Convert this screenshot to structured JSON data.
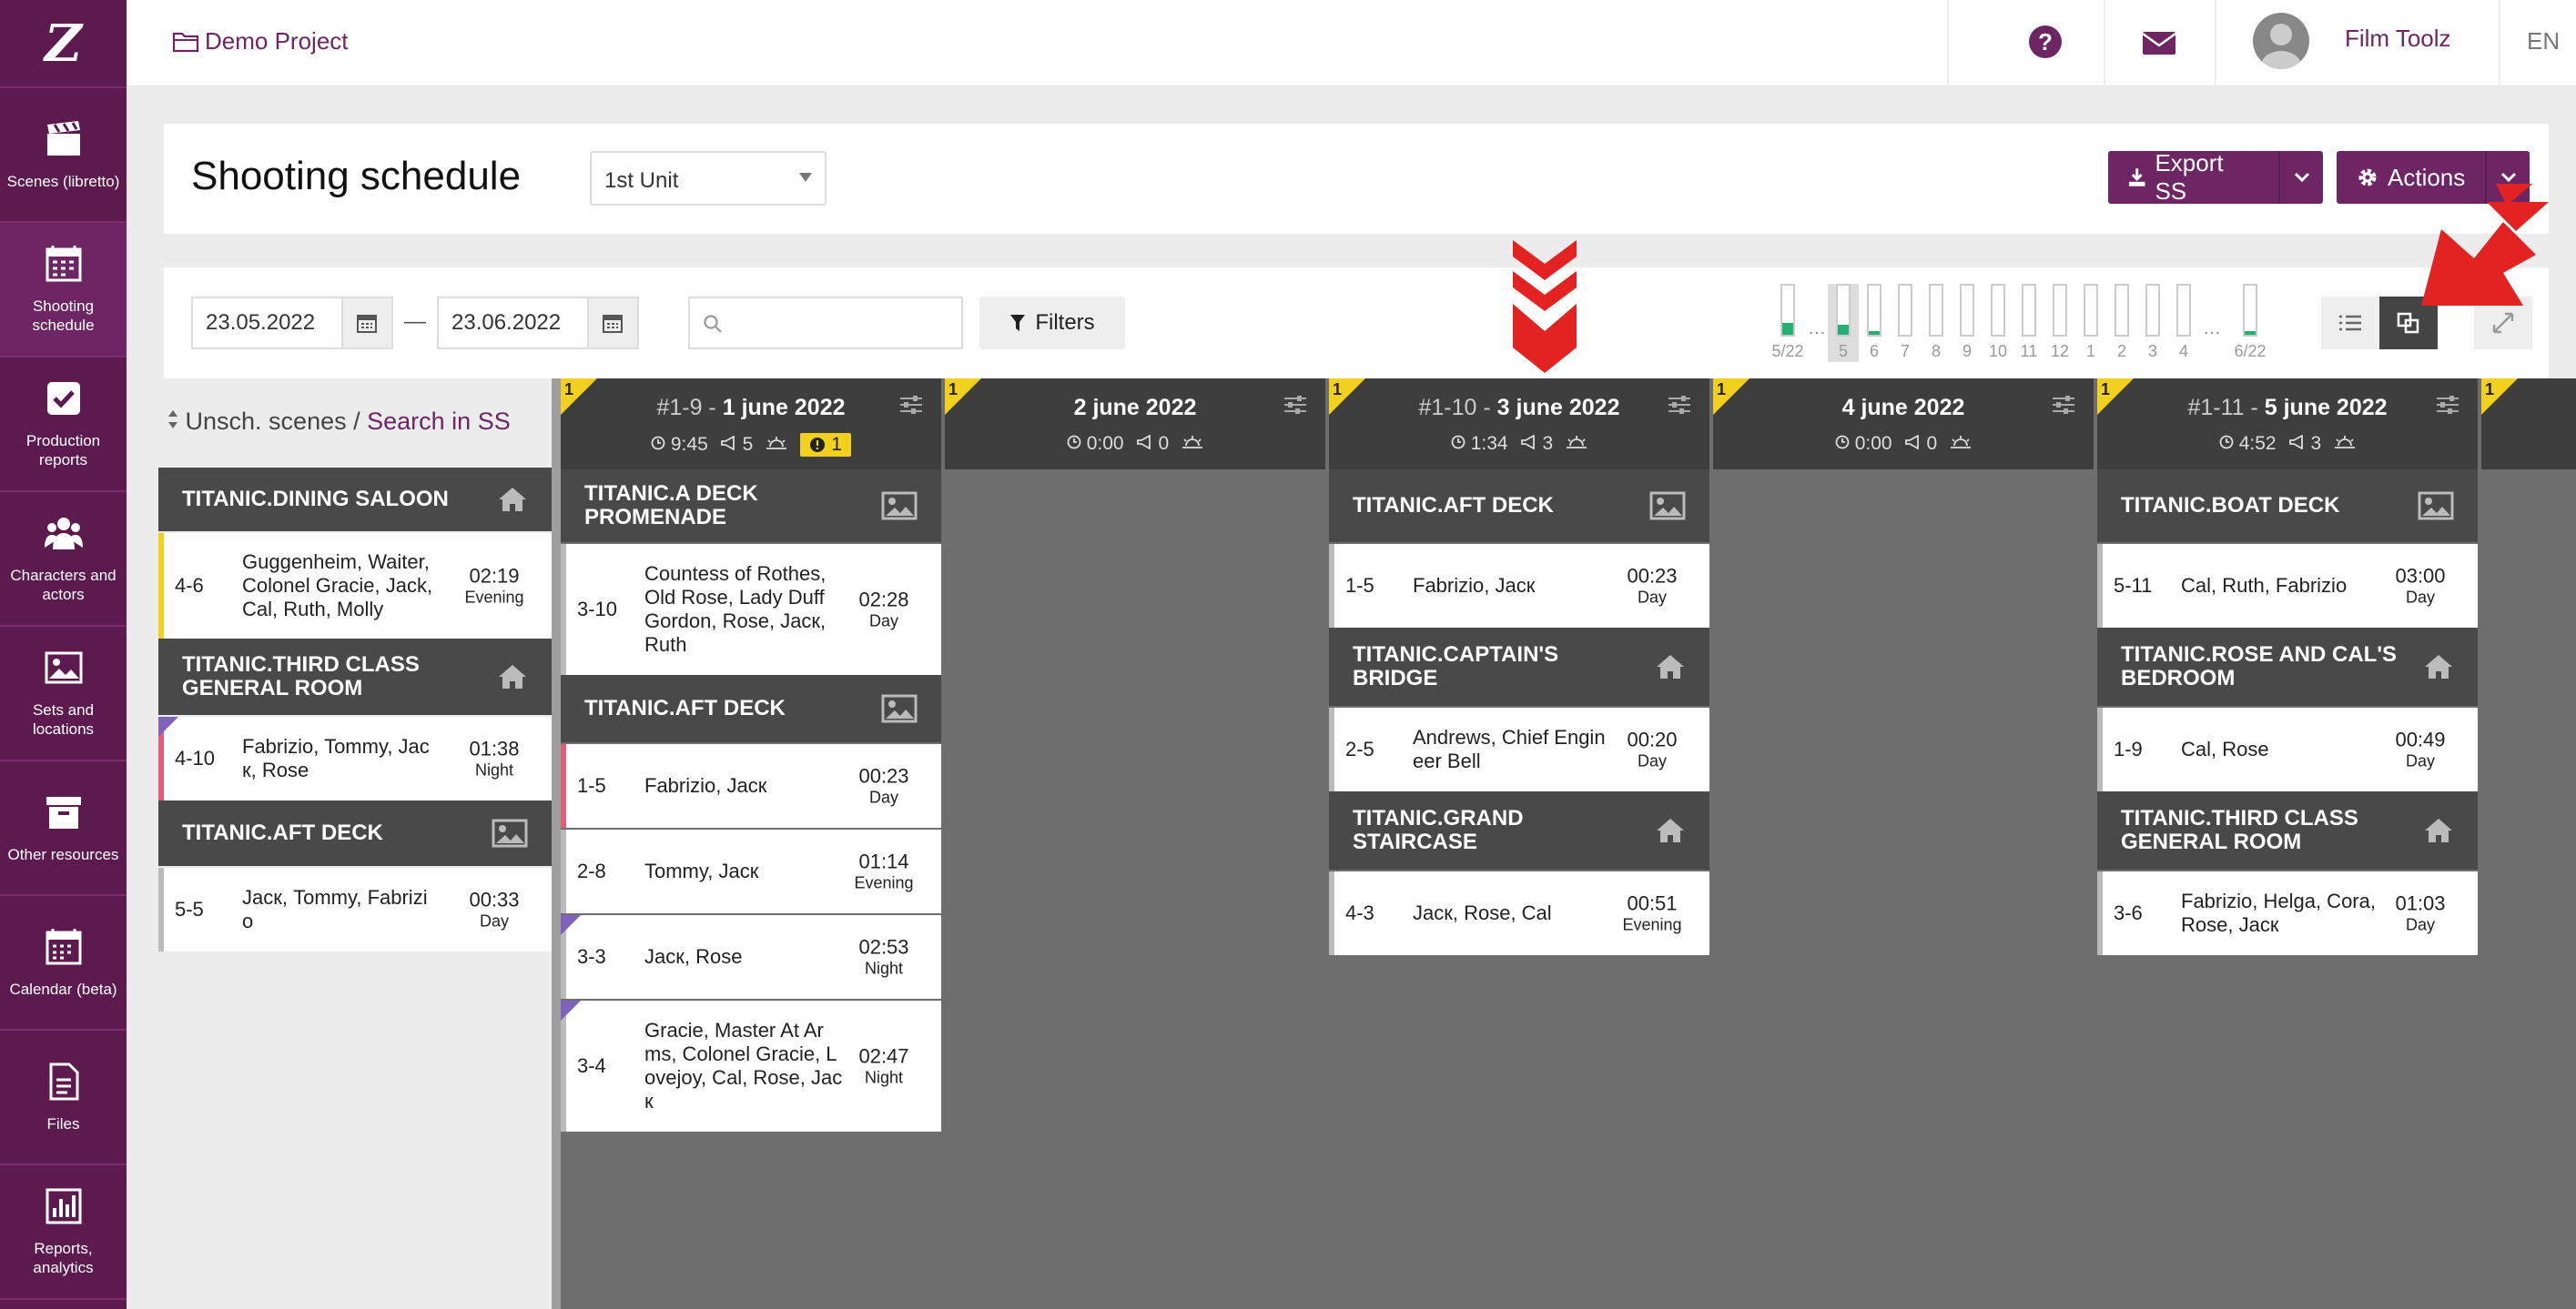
{
  "sidebar": {
    "logo": "Z",
    "items": [
      {
        "label": "Scenes (libretto)",
        "icon": "clapperboard-icon"
      },
      {
        "label": "Shooting schedule",
        "icon": "calendar-grid-icon"
      },
      {
        "label": "Production reports",
        "icon": "checkbox-icon"
      },
      {
        "label": "Characters and actors",
        "icon": "users-icon"
      },
      {
        "label": "Sets and locations",
        "icon": "image-icon"
      },
      {
        "label": "Other resources",
        "icon": "archive-icon"
      },
      {
        "label": "Calendar (beta)",
        "icon": "calendar-icon"
      },
      {
        "label": "Files",
        "icon": "file-icon"
      },
      {
        "label": "Reports, analytics",
        "icon": "chart-icon"
      }
    ]
  },
  "topbar": {
    "project": "Demo Project",
    "user_name": "Film Toolz",
    "lang": "EN"
  },
  "header": {
    "title": "Shooting schedule",
    "unit": "1st Unit",
    "export_label": "Export SS",
    "actions_label": "Actions"
  },
  "toolbar": {
    "date_from": "23.05.2022",
    "date_to": "23.06.2022",
    "date_dash": "—",
    "search_placeholder": "",
    "filters_label": "Filters",
    "days": [
      {
        "label": "5/22",
        "fill": 0.25
      },
      {
        "label": "5",
        "fill": 0.2,
        "selected": true
      },
      {
        "label": "6",
        "fill": 0.08
      },
      {
        "label": "7",
        "fill": 0
      },
      {
        "label": "8",
        "fill": 0
      },
      {
        "label": "9",
        "fill": 0
      },
      {
        "label": "10",
        "fill": 0
      },
      {
        "label": "11",
        "fill": 0
      },
      {
        "label": "12",
        "fill": 0
      },
      {
        "label": "1",
        "fill": 0
      },
      {
        "label": "2",
        "fill": 0
      },
      {
        "label": "3",
        "fill": 0
      },
      {
        "label": "4",
        "fill": 0
      },
      {
        "label": "6/22",
        "fill": 0.08
      }
    ],
    "dots": "…"
  },
  "unscheduled": {
    "title_prefix": "Unsch. scenes",
    "separator": " / ",
    "link": "Search in SS",
    "groups": [
      {
        "name": "TITANIC.DINING SALOON",
        "icon": "home-icon",
        "scenes": [
          {
            "num": "4-6",
            "chars": "Guggenheim, Waiter, Colonel Gracie, Jack, Cal, Ruth, Molly",
            "time": "02:19",
            "dn": "Evening",
            "strip": "#f2d01e"
          }
        ]
      },
      {
        "name": "TITANIC.THIRD CLASS GENERAL ROOM",
        "icon": "home-icon",
        "scenes": [
          {
            "num": "4-10",
            "chars": "Fabrizio, Tommy, Jac к, Rose",
            "time": "01:38",
            "dn": "Night",
            "strip": "#e0607a",
            "flag": true
          }
        ]
      },
      {
        "name": "TITANIC.AFT DECK",
        "icon": "picture-icon",
        "scenes": [
          {
            "num": "5-5",
            "chars": "Jacк, Tommy, Fabrizi o",
            "time": "00:33",
            "dn": "Day",
            "strip": "#bbbbbb"
          }
        ]
      }
    ]
  },
  "days": [
    {
      "corner": "1",
      "prefix": "#1-9 - ",
      "date": "1 june 2022",
      "duration": "9:45",
      "pages": "5",
      "warn": "1",
      "groups": [
        {
          "name": "TITANIC.A DECK PROMENADE",
          "icon": "picture-icon",
          "scenes": [
            {
              "num": "3-10",
              "chars": "Countess of Rothes, Old Rose, Lady Duff Gordon, Rose, Jacк, Ruth",
              "time": "02:28",
              "dn": "Day",
              "strip": "#bbbbbb"
            }
          ]
        },
        {
          "name": "TITANIC.AFT DECK",
          "icon": "picture-icon",
          "scenes": [
            {
              "num": "1-5",
              "chars": "Fabrizio, Jacк",
              "time": "00:23",
              "dn": "Day",
              "strip": "#e0607a"
            },
            {
              "num": "2-8",
              "chars": "Tommy, Jacк",
              "time": "01:14",
              "dn": "Evening",
              "strip": "#bbbbbb"
            },
            {
              "num": "3-3",
              "chars": "Jacк, Rose",
              "time": "02:53",
              "dn": "Night",
              "strip": "#bbbbbb",
              "flag": true
            },
            {
              "num": "3-4",
              "chars": "Gracie, Master At Ar ms, Colonel Gracie, L ovejoy, Cal, Rose, Jac к",
              "time": "02:47",
              "dn": "Night",
              "strip": "#bbbbbb",
              "flag": true
            }
          ]
        }
      ]
    },
    {
      "corner": "1",
      "prefix": "",
      "date": "2 june 2022",
      "duration": "0:00",
      "pages": "0",
      "groups": []
    },
    {
      "corner": "1",
      "prefix": "#1-10 - ",
      "date": "3 june 2022",
      "duration": "1:34",
      "pages": "3",
      "groups": [
        {
          "name": "TITANIC.AFT DECK",
          "icon": "picture-icon",
          "scenes": [
            {
              "num": "1-5",
              "chars": "Fabrizio, Jacк",
              "time": "00:23",
              "dn": "Day",
              "strip": "#bbbbbb"
            }
          ]
        },
        {
          "name": "TITANIC.CAPTAIN'S BRIDGE",
          "icon": "home-icon",
          "scenes": [
            {
              "num": "2-5",
              "chars": "Andrews, Chief Engin eer Bell",
              "time": "00:20",
              "dn": "Day",
              "strip": "#bbbbbb"
            }
          ]
        },
        {
          "name": "TITANIC.GRAND STAIRCASE",
          "icon": "home-icon",
          "scenes": [
            {
              "num": "4-3",
              "chars": "Jacк, Rose, Cal",
              "time": "00:51",
              "dn": "Evening",
              "strip": "#bbbbbb"
            }
          ]
        }
      ]
    },
    {
      "corner": "1",
      "prefix": "",
      "date": "4 june 2022",
      "duration": "0:00",
      "pages": "0",
      "groups": []
    },
    {
      "corner": "1",
      "prefix": "#1-11 - ",
      "date": "5 june 2022",
      "duration": "4:52",
      "pages": "3",
      "groups": [
        {
          "name": "TITANIC.BOAT DECK",
          "icon": "picture-icon",
          "scenes": [
            {
              "num": "5-11",
              "chars": "Cal, Ruth, Fabrizio",
              "time": "03:00",
              "dn": "Day",
              "strip": "#bbbbbb"
            }
          ]
        },
        {
          "name": "TITANIC.ROSE AND CAL'S BEDROOM",
          "icon": "home-icon",
          "scenes": [
            {
              "num": "1-9",
              "chars": "Cal, Rose",
              "time": "00:49",
              "dn": "Day",
              "strip": "#bbbbbb"
            }
          ]
        },
        {
          "name": "TITANIC.THIRD CLASS GENERAL ROOM",
          "icon": "home-icon",
          "scenes": [
            {
              "num": "3-6",
              "chars": "Fabrizio, Helga, Cora, Rose, Jacк",
              "time": "01:03",
              "dn": "Day",
              "strip": "#bbbbbb"
            }
          ]
        }
      ]
    }
  ],
  "next_day_corner": "1",
  "colors": {
    "brand": "#6d2663",
    "sidebar": "#5d1a4f",
    "accent_yellow": "#f2d01e",
    "annotation_red": "#e32222",
    "progress_green": "#23b070"
  }
}
